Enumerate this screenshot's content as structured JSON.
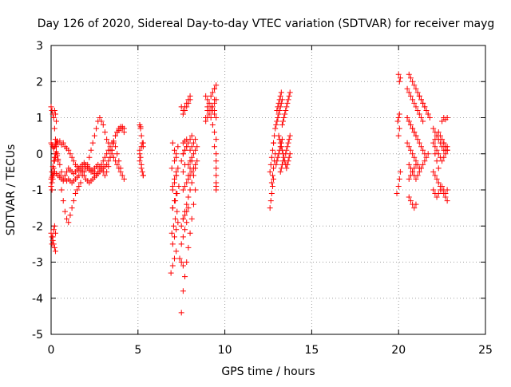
{
  "chart_data": {
    "type": "scatter",
    "title": "Day 126 of 2020, Sidereal Day-to-day VTEC variation (SDTVAR) for receiver mayg",
    "xlabel": "GPS time / hours",
    "ylabel": "SDTVAR / TECUs",
    "xlim": [
      0,
      25
    ],
    "ylim": [
      -5,
      3
    ],
    "xticks": [
      "0",
      "5",
      "10",
      "15",
      "20",
      "25"
    ],
    "yticks": [
      "-5",
      "-4",
      "-3",
      "-2",
      "-1",
      "0",
      "1",
      "2",
      "3"
    ],
    "grid": true,
    "marker": "plus",
    "color": "#ff0000",
    "series": [
      {
        "name": "SDTVAR",
        "x": [
          0.0,
          0.05,
          0.1,
          0.15,
          0.2,
          0.25,
          0.3,
          0.35,
          0.4,
          0.5,
          0.6,
          0.7,
          0.8,
          0.9,
          1.0,
          1.1,
          1.2,
          1.3,
          1.4,
          1.5,
          1.6,
          1.7,
          1.8,
          1.9,
          2.0,
          2.1,
          2.2,
          2.3,
          2.4,
          2.5,
          2.6,
          2.7,
          2.8,
          2.9,
          3.0,
          3.1,
          3.2,
          3.3,
          3.4,
          3.5,
          3.6,
          3.7,
          3.8,
          3.9,
          4.0,
          4.1,
          4.2,
          0.0,
          0.05,
          0.1,
          0.15,
          0.2,
          0.3,
          0.4,
          0.5,
          0.6,
          0.7,
          0.8,
          0.9,
          1.0,
          1.1,
          1.2,
          1.3,
          1.4,
          1.5,
          1.6,
          1.7,
          1.8,
          1.9,
          2.0,
          2.1,
          2.2,
          2.3,
          2.4,
          2.5,
          2.6,
          2.7,
          2.8,
          2.9,
          3.0,
          3.1,
          3.2,
          3.3,
          3.4,
          3.5,
          3.6,
          3.7,
          3.8,
          3.9,
          4.0,
          4.1,
          4.2,
          0.05,
          0.1,
          0.15,
          0.2,
          0.25,
          0.3,
          0.35,
          0.4,
          0.5,
          0.6,
          0.7,
          0.8,
          0.9,
          1.0,
          1.1,
          1.2,
          1.3,
          1.4,
          1.5,
          1.6,
          1.7,
          1.8,
          1.9,
          2.0,
          2.1,
          2.2,
          2.3,
          2.4,
          2.5,
          2.6,
          2.7,
          2.8,
          2.9,
          3.0,
          3.1,
          3.2,
          3.3,
          3.4,
          3.5,
          3.6,
          3.7,
          3.8,
          3.9,
          4.0,
          0.0,
          0.05,
          0.1,
          0.15,
          0.2,
          0.25,
          0.3,
          0.35,
          0.4,
          0.5,
          0.6,
          0.7,
          0.8,
          0.9,
          1.0,
          1.1,
          1.2,
          1.3,
          1.4,
          1.5,
          1.6,
          1.7,
          1.8,
          1.9,
          2.0,
          2.1,
          2.2,
          2.3,
          2.4,
          2.5,
          2.6,
          2.7,
          2.8,
          2.9,
          3.0,
          3.1,
          3.2,
          3.3,
          3.4,
          3.5,
          3.6,
          3.7,
          3.8,
          3.9,
          4.0,
          4.1,
          4.2,
          0.0,
          0.05,
          0.1,
          0.15,
          0.2,
          0.25,
          0.05,
          0.1,
          0.15,
          0.2,
          0.25,
          0.0,
          0.05,
          0.1,
          0.15,
          0.2,
          0.25,
          0.2,
          0.25,
          0.3,
          0.05,
          0.1,
          5.1,
          5.15,
          5.2,
          5.25,
          5.3,
          5.1,
          5.15,
          5.2,
          5.25,
          5.3,
          5.1,
          5.2,
          5.3,
          5.1,
          5.2,
          5.3,
          5.15,
          6.9,
          7.0,
          7.1,
          7.2,
          7.0,
          7.1,
          7.2,
          7.3,
          6.95,
          7.05,
          7.15,
          7.25,
          7.0,
          7.1,
          7.2,
          7.0,
          7.1,
          7.2,
          6.95,
          7.1,
          7.2,
          7.3,
          7.0,
          7.1,
          7.2,
          7.1,
          7.2,
          7.3,
          7.0,
          7.1,
          7.2,
          7.0,
          7.15,
          7.25,
          7.35,
          7.5,
          7.6,
          7.4,
          7.5,
          7.6,
          7.7,
          7.8,
          7.9,
          8.0,
          8.1,
          8.2,
          8.3,
          7.5,
          7.6,
          7.7,
          7.8,
          7.9,
          8.0,
          8.1,
          8.2,
          8.3,
          7.5,
          7.6,
          7.7,
          7.8,
          7.9,
          8.0,
          8.1,
          7.5,
          7.6,
          7.7,
          7.8,
          7.9,
          8.0,
          7.6,
          7.7,
          7.8,
          7.9,
          8.0,
          7.5,
          7.6,
          7.7,
          7.8,
          7.6,
          7.7,
          7.8,
          7.9,
          7.6,
          7.7,
          7.8,
          7.9,
          7.6,
          7.7,
          7.8,
          7.6,
          7.7,
          7.6,
          7.7,
          7.8,
          8.0,
          8.1,
          8.2,
          8.3,
          7.9,
          8.0,
          8.1,
          8.2,
          8.3,
          8.4,
          8.0,
          8.1,
          8.2,
          8.3,
          8.4,
          7.9,
          8.0,
          8.1,
          8.9,
          9.0,
          9.1,
          9.2,
          9.3,
          9.4,
          9.5,
          8.9,
          9.0,
          9.1,
          9.2,
          9.3,
          9.4,
          9.5,
          8.9,
          9.0,
          9.1,
          9.2,
          9.3,
          9.4,
          9.5,
          9.0,
          9.1,
          9.2,
          9.3,
          9.4,
          9.5,
          9.4,
          9.5,
          9.5,
          9.5,
          9.5,
          9.5,
          9.5,
          9.5,
          9.4,
          9.4,
          9.4,
          12.6,
          12.65,
          12.7,
          12.75,
          12.8,
          12.6,
          12.65,
          12.7,
          12.75,
          12.8,
          12.7,
          12.75,
          12.8,
          12.85,
          12.9,
          12.8,
          12.85,
          12.9,
          12.95,
          13.0,
          13.0,
          13.05,
          13.1,
          13.15,
          13.2,
          13.25,
          13.0,
          13.05,
          13.1,
          13.15,
          13.2,
          13.25,
          13.3,
          12.95,
          13.0,
          13.05,
          13.1,
          13.15,
          13.2,
          13.25,
          13.3,
          13.1,
          13.15,
          13.2,
          13.25,
          13.3,
          13.35,
          13.4,
          13.45,
          13.5,
          13.55,
          13.6,
          13.65,
          13.7,
          13.75,
          13.3,
          13.35,
          13.4,
          13.45,
          13.5,
          13.55,
          13.6,
          13.65,
          13.7,
          13.75,
          13.5,
          13.55,
          13.6,
          13.65,
          13.7,
          13.75,
          13.2,
          13.25,
          13.3,
          13.35,
          19.9,
          20.0,
          20.05,
          20.1,
          20.0,
          20.05,
          19.95,
          20.0,
          20.05,
          20.0,
          20.1,
          20.05,
          20.6,
          20.7,
          20.8,
          20.9,
          21.0,
          20.6,
          20.7,
          20.8,
          20.9,
          21.0,
          21.1,
          21.2,
          21.3,
          21.4,
          21.5,
          21.6,
          21.7,
          20.5,
          20.6,
          20.7,
          20.8,
          20.9,
          21.0,
          21.1,
          21.2,
          21.3,
          21.4,
          20.5,
          20.6,
          20.7,
          20.8,
          20.9,
          21.0,
          21.1,
          21.2,
          21.3,
          21.4,
          21.5,
          20.5,
          20.6,
          20.7,
          20.8,
          20.9,
          21.0,
          21.1,
          21.2,
          20.6,
          20.7,
          20.8,
          20.9,
          21.0,
          21.1,
          21.2,
          21.3,
          21.4,
          21.5,
          21.6,
          21.7,
          20.6,
          20.7,
          20.8,
          20.9,
          21.0,
          20.5,
          20.6,
          20.7,
          20.8,
          20.9,
          21.0,
          21.2,
          21.3,
          21.4,
          21.5,
          21.6,
          21.7,
          21.8,
          22.0,
          22.1,
          22.2,
          22.3,
          22.4,
          22.5,
          22.6,
          22.7,
          22.8,
          22.0,
          22.1,
          22.2,
          22.3,
          22.4,
          22.5,
          22.6,
          22.7,
          22.8,
          22.0,
          22.1,
          22.2,
          22.3,
          22.4,
          22.5,
          22.6,
          22.7,
          22.8,
          22.0,
          22.1,
          22.2,
          22.3,
          22.4,
          22.5,
          22.6,
          22.7,
          22.8,
          22.1,
          22.2,
          22.3,
          22.4,
          22.5,
          22.6,
          22.7,
          22.8,
          22.5,
          22.6,
          22.7,
          22.8,
          22.6,
          22.7,
          22.8,
          22.1,
          22.2,
          22.3
        ],
        "y": [
          0.3,
          0.25,
          0.2,
          0.15,
          0.2,
          0.25,
          0.3,
          0.35,
          0.3,
          0.35,
          0.25,
          0.3,
          0.2,
          0.15,
          0.1,
          0.0,
          -0.1,
          -0.2,
          -0.3,
          -0.35,
          -0.4,
          -0.35,
          -0.3,
          -0.25,
          -0.3,
          -0.35,
          -0.4,
          -0.45,
          -0.5,
          -0.55,
          -0.6,
          -0.55,
          -0.5,
          -0.45,
          -0.4,
          -0.35,
          -0.3,
          -0.2,
          -0.1,
          0.1,
          0.3,
          0.5,
          0.6,
          0.7,
          0.75,
          0.7,
          0.6,
          -0.7,
          -0.65,
          -0.6,
          -0.55,
          -0.5,
          -0.55,
          -0.6,
          -0.65,
          -0.7,
          -0.75,
          -0.7,
          -0.75,
          -0.7,
          -0.75,
          -0.8,
          -0.75,
          -0.7,
          -0.65,
          -0.6,
          -0.5,
          -0.4,
          -0.3,
          -0.35,
          -0.4,
          -0.45,
          -0.5,
          -0.45,
          -0.4,
          -0.35,
          -0.3,
          -0.35,
          -0.4,
          -0.5,
          -0.6,
          -0.5,
          -0.35,
          -0.1,
          0.1,
          0.3,
          0.5,
          0.6,
          0.65,
          0.7,
          0.75,
          0.7,
          -0.5,
          -0.35,
          -0.2,
          -0.1,
          0.0,
          0.05,
          -0.05,
          -0.15,
          -0.3,
          -0.5,
          -0.7,
          -0.6,
          -0.5,
          -0.4,
          -0.45,
          -0.5,
          -0.55,
          -0.5,
          -0.45,
          -0.4,
          -0.45,
          -0.5,
          -0.6,
          -0.7,
          -0.75,
          -0.8,
          -0.75,
          -0.7,
          -0.65,
          -0.6,
          -0.5,
          -0.4,
          -0.3,
          -0.2,
          -0.1,
          0.0,
          0.1,
          0.2,
          0.3,
          0.35,
          0.2,
          0.0,
          -0.2,
          -0.4,
          1.3,
          1.2,
          1.1,
          1.0,
          0.7,
          0.4,
          0.2,
          0.0,
          -0.2,
          -0.6,
          -1.0,
          -1.3,
          -1.6,
          -1.8,
          -1.9,
          -1.7,
          -1.5,
          -1.3,
          -1.1,
          -1.0,
          -0.9,
          -0.8,
          -0.6,
          -0.5,
          -0.4,
          -0.3,
          -0.1,
          0.1,
          0.3,
          0.5,
          0.7,
          0.9,
          1.0,
          0.9,
          0.8,
          0.6,
          0.4,
          0.3,
          0.1,
          0.0,
          -0.1,
          -0.2,
          -0.3,
          -0.4,
          -0.5,
          -0.6,
          -0.7,
          -2.2,
          -2.3,
          -2.4,
          -2.5,
          -2.6,
          -2.7,
          -2.5,
          -2.3,
          -2.1,
          -2.0,
          -2.2,
          -0.9,
          -0.8,
          -0.6,
          -0.4,
          -0.2,
          -0.1,
          1.2,
          1.1,
          0.9,
          -1.0,
          -0.7,
          0.8,
          0.7,
          0.5,
          0.3,
          0.2,
          0.1,
          -0.1,
          -0.3,
          -0.5,
          -0.6,
          -0.2,
          -0.4,
          -0.6,
          0.0,
          0.2,
          0.3,
          0.75,
          -3.3,
          -3.1,
          -2.9,
          -2.7,
          -2.5,
          -2.3,
          -2.1,
          -1.9,
          -2.2,
          -2.0,
          -1.8,
          -1.6,
          -1.5,
          -1.3,
          -1.1,
          -0.9,
          -0.7,
          -0.5,
          -0.4,
          -0.2,
          0.0,
          0.2,
          0.3,
          0.1,
          -0.1,
          -0.8,
          -0.6,
          -0.4,
          -1.0,
          -0.8,
          -0.6,
          -1.5,
          -1.3,
          -1.1,
          -0.9,
          -3.0,
          -3.1,
          -2.9,
          -4.4,
          -3.8,
          -3.4,
          -3.0,
          -2.6,
          -2.2,
          -1.8,
          -1.4,
          -1.0,
          -2.0,
          -1.8,
          -1.6,
          -1.4,
          -1.2,
          -1.0,
          -0.8,
          -0.6,
          -0.4,
          -0.2,
          0.0,
          0.1,
          0.2,
          0.3,
          0.4,
          0.5,
          1.3,
          1.2,
          1.3,
          1.4,
          1.5,
          1.6,
          1.1,
          1.2,
          1.3,
          1.4,
          1.5,
          -2.5,
          -2.3,
          -2.1,
          -1.9,
          -1.8,
          -1.7,
          -1.6,
          -1.5,
          -1.0,
          -0.9,
          -0.8,
          -0.7,
          0.0,
          0.1,
          0.2,
          -0.5,
          -0.3,
          0.3,
          0.35,
          0.4,
          0.1,
          0.2,
          0.3,
          0.4,
          -0.3,
          -0.2,
          -0.1,
          0.0,
          0.1,
          0.2,
          -0.6,
          -0.5,
          -0.4,
          -0.3,
          -0.2,
          -0.6,
          -0.4,
          -0.2,
          1.0,
          1.2,
          1.4,
          1.6,
          1.7,
          1.8,
          1.9,
          0.9,
          1.0,
          1.1,
          1.2,
          1.3,
          1.4,
          1.5,
          1.6,
          1.5,
          1.4,
          1.3,
          1.2,
          1.1,
          1.0,
          1.3,
          1.2,
          1.0,
          0.8,
          0.6,
          0.4,
          0.2,
          0.0,
          -0.2,
          -0.4,
          -0.6,
          -0.8,
          -1.0,
          -0.9,
          1.8,
          1.5,
          1.2,
          -1.5,
          -1.3,
          -1.1,
          -0.9,
          -0.7,
          -0.5,
          -0.3,
          -0.1,
          0.1,
          0.3,
          -0.8,
          -0.6,
          -0.4,
          -0.2,
          0.0,
          0.3,
          0.5,
          0.7,
          0.8,
          0.9,
          1.2,
          1.3,
          1.4,
          1.5,
          1.6,
          1.7,
          0.9,
          1.0,
          1.1,
          1.2,
          1.3,
          1.4,
          1.5,
          -0.3,
          -0.2,
          -0.1,
          0.0,
          0.1,
          0.2,
          0.3,
          0.4,
          0.5,
          0.4,
          0.3,
          0.2,
          0.1,
          0.0,
          -0.1,
          -0.2,
          -0.3,
          -0.4,
          -0.3,
          -0.2,
          -0.1,
          0.0,
          0.8,
          0.9,
          1.0,
          1.1,
          1.2,
          1.3,
          1.4,
          1.5,
          1.6,
          1.7,
          0.0,
          0.1,
          0.2,
          0.3,
          0.4,
          0.5,
          -0.5,
          -0.4,
          -0.3,
          -0.2,
          -1.1,
          -0.9,
          -0.7,
          -0.5,
          0.5,
          0.7,
          0.9,
          1.0,
          1.1,
          2.2,
          2.1,
          2.0,
          -1.2,
          -1.3,
          -1.4,
          -1.5,
          -1.4,
          2.2,
          2.1,
          2.0,
          1.9,
          1.8,
          1.7,
          1.6,
          1.5,
          1.4,
          1.3,
          1.2,
          1.1,
          1.8,
          1.7,
          1.6,
          1.5,
          1.4,
          1.3,
          1.2,
          1.1,
          1.0,
          0.9,
          1.0,
          0.9,
          0.8,
          0.7,
          0.6,
          0.5,
          0.4,
          0.3,
          0.2,
          0.1,
          0.0,
          0.3,
          0.2,
          0.1,
          0.0,
          -0.1,
          -0.2,
          -0.3,
          -0.4,
          -0.3,
          -0.4,
          -0.5,
          -0.6,
          -0.7,
          -0.6,
          -0.5,
          -0.4,
          -0.3,
          -0.2,
          -0.1,
          0.0,
          -0.7,
          -0.6,
          -0.5,
          -0.4,
          -0.3,
          1.0,
          0.9,
          0.8,
          0.7,
          0.6,
          0.5,
          1.6,
          1.5,
          1.4,
          1.3,
          1.2,
          1.1,
          1.0,
          0.7,
          0.6,
          0.5,
          0.4,
          0.3,
          0.2,
          0.1,
          0.1,
          0.2,
          0.3,
          0.2,
          0.1,
          0.0,
          -0.1,
          -0.2,
          -0.1,
          0.0,
          0.1,
          -0.5,
          -0.6,
          -0.7,
          -0.8,
          -0.9,
          -1.0,
          -1.1,
          -1.2,
          -1.3,
          -1.0,
          -1.1,
          -1.2,
          -1.1,
          -1.0,
          -0.9,
          -1.0,
          -1.1,
          -1.0,
          0.4,
          0.5,
          0.6,
          0.5,
          0.4,
          0.3,
          0.2,
          0.1,
          0.9,
          1.0,
          0.95,
          1.0,
          0.3,
          0.2,
          0.1,
          0.0,
          -0.2,
          -0.4
        ]
      }
    ]
  }
}
